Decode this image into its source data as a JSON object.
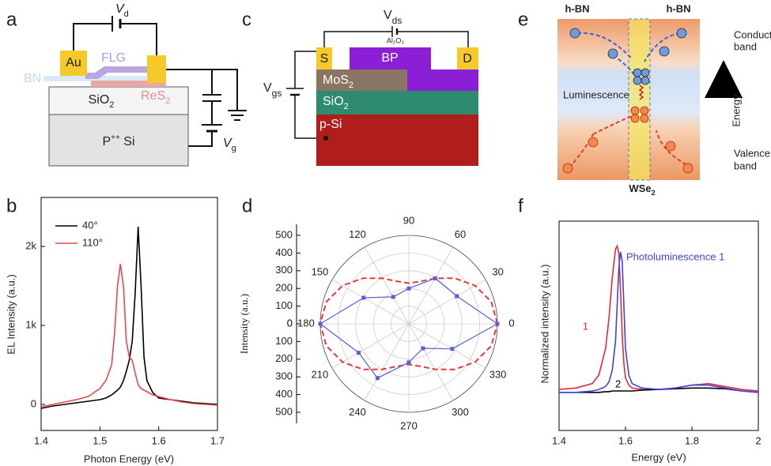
{
  "panel_labels": [
    "a",
    "b",
    "c",
    "d",
    "e",
    "f"
  ],
  "diagram_a": {
    "vd": {
      "main": "V",
      "sub": "d"
    },
    "au": "Au",
    "flg": "FLG",
    "bn": "BN",
    "sio2": {
      "main": "SiO",
      "sub": "2"
    },
    "res2": {
      "main": "ReS",
      "sub": "2"
    },
    "si": {
      "main": "P",
      "sup": "++",
      "rest": " Si"
    },
    "vg": {
      "main": "V",
      "sub": "g"
    }
  },
  "diagram_c": {
    "vds": {
      "main": "V",
      "sub": "ds"
    },
    "al2o3": "Al₂O₃",
    "s": "S",
    "d": "D",
    "bp": "BP",
    "mos2": {
      "main": "MoS",
      "sub": "2"
    },
    "sio2": {
      "main": "SiO",
      "sub": "2"
    },
    "psi": "p-Si",
    "vgs": {
      "main": "V",
      "sub": "gs"
    }
  },
  "diagram_e": {
    "hbn_left": "h-BN",
    "hbn_right": "h-BN",
    "conduction": [
      "Conduction",
      "band"
    ],
    "luminescence": "Luminescence",
    "energy": "Energy",
    "valence": [
      "Valence",
      "band"
    ],
    "wse2": {
      "main": "WSe",
      "sub": "2"
    }
  },
  "chart_data": [
    {
      "type": "line",
      "xlabel": "Photon Energy (eV)",
      "ylabel": "EL Intensity (a.u.)",
      "x": [
        1.4,
        1.42,
        1.44,
        1.46,
        1.48,
        1.5,
        1.51,
        1.52,
        1.525,
        1.53,
        1.535,
        1.54,
        1.545,
        1.55,
        1.555,
        1.56,
        1.565,
        1.57,
        1.575,
        1.58,
        1.59,
        1.6,
        1.62,
        1.64,
        1.66,
        1.68,
        1.7
      ],
      "series": [
        {
          "name": "40°",
          "color": "#000000",
          "values": [
            -50,
            -20,
            0,
            20,
            40,
            60,
            80,
            120,
            150,
            180,
            220,
            300,
            420,
            560,
            800,
            1400,
            2250,
            1500,
            600,
            300,
            150,
            80,
            60,
            40,
            20,
            10,
            0
          ]
        },
        {
          "name": "110°",
          "color": "#e8474f",
          "values": [
            -30,
            0,
            30,
            60,
            100,
            200,
            300,
            500,
            900,
            1500,
            1780,
            1500,
            800,
            600,
            560,
            400,
            250,
            200,
            180,
            160,
            120,
            100,
            60,
            30,
            10,
            0,
            -10
          ]
        }
      ],
      "xlim": [
        1.4,
        1.7
      ],
      "xticks": [
        1.4,
        1.5,
        1.6,
        1.7
      ],
      "ylim": [
        -330,
        2620
      ],
      "yticks": [
        0,
        {
          "value": 1000,
          "label": "1k"
        },
        {
          "value": 2000,
          "label": "2k"
        }
      ],
      "legend": "upper left"
    },
    {
      "type": "polar",
      "ylabel": "Intensity (a.u.)",
      "rlim": [
        0,
        500
      ],
      "rticks": [
        0,
        100,
        200,
        300,
        400,
        500
      ],
      "thetaticks": [
        0,
        30,
        60,
        90,
        120,
        150,
        180,
        210,
        240,
        270,
        300,
        330
      ],
      "series": [
        {
          "color": "#e8383d",
          "style": "dashed",
          "theta": [
            0,
            15,
            30,
            45,
            60,
            75,
            90,
            105,
            120,
            135,
            150,
            165,
            180,
            195,
            210,
            225,
            240,
            255,
            270,
            285,
            300,
            315,
            330,
            345
          ],
          "values": [
            500,
            482,
            432,
            365,
            297,
            248,
            230,
            248,
            297,
            365,
            432,
            482,
            500,
            482,
            432,
            365,
            297,
            248,
            230,
            248,
            297,
            365,
            432,
            482
          ]
        },
        {
          "color": "#5a5fd8",
          "style": "solid",
          "marker": "square",
          "theta": [
            0,
            30,
            60,
            90,
            120,
            150,
            180,
            210,
            240,
            270,
            300,
            330
          ],
          "values": [
            500,
            313,
            297,
            200,
            176,
            295,
            500,
            327,
            354,
            218,
            160,
            283
          ]
        }
      ]
    },
    {
      "type": "line",
      "xlabel": "Energy (eV)",
      "ylabel": "Normalized intensity (a.u.)",
      "x": [
        1.4,
        1.45,
        1.5,
        1.52,
        1.54,
        1.55,
        1.56,
        1.57,
        1.575,
        1.58,
        1.585,
        1.59,
        1.595,
        1.6,
        1.61,
        1.62,
        1.65,
        1.7,
        1.75,
        1.8,
        1.85,
        1.9,
        1.95,
        2.0
      ],
      "series": [
        {
          "name": "1",
          "color": "#e8283a",
          "values": [
            0.02,
            0.03,
            0.06,
            0.12,
            0.3,
            0.5,
            0.78,
            0.98,
            1.0,
            0.95,
            0.7,
            0.4,
            0.2,
            0.1,
            0.05,
            0.03,
            0.02,
            0.02,
            0.03,
            0.05,
            0.06,
            0.04,
            0.02,
            0.01
          ]
        },
        {
          "name": "2",
          "color": "#000000",
          "values": [
            0,
            0,
            0,
            0,
            0.005,
            0.005,
            0.01,
            0.01,
            0.01,
            0.01,
            0.01,
            0.01,
            0.01,
            0.01,
            0.01,
            0.01,
            0.015,
            0.02,
            0.025,
            0.03,
            0.03,
            0.025,
            0.01,
            0
          ]
        },
        {
          "name": "Photoluminescence 1",
          "color": "#3d45e0",
          "values": [
            0,
            0,
            0.01,
            0.02,
            0.04,
            0.07,
            0.15,
            0.35,
            0.6,
            0.85,
            0.96,
            0.9,
            0.6,
            0.3,
            0.12,
            0.06,
            0.03,
            0.02,
            0.03,
            0.05,
            0.05,
            0.03,
            0.01,
            0.0
          ]
        }
      ],
      "xlim": [
        1.4,
        2.0
      ],
      "xticks": [
        1.4,
        1.6,
        1.8,
        2.0
      ],
      "ylim": [
        -0.26,
        1.17
      ],
      "legend": "inline"
    }
  ]
}
